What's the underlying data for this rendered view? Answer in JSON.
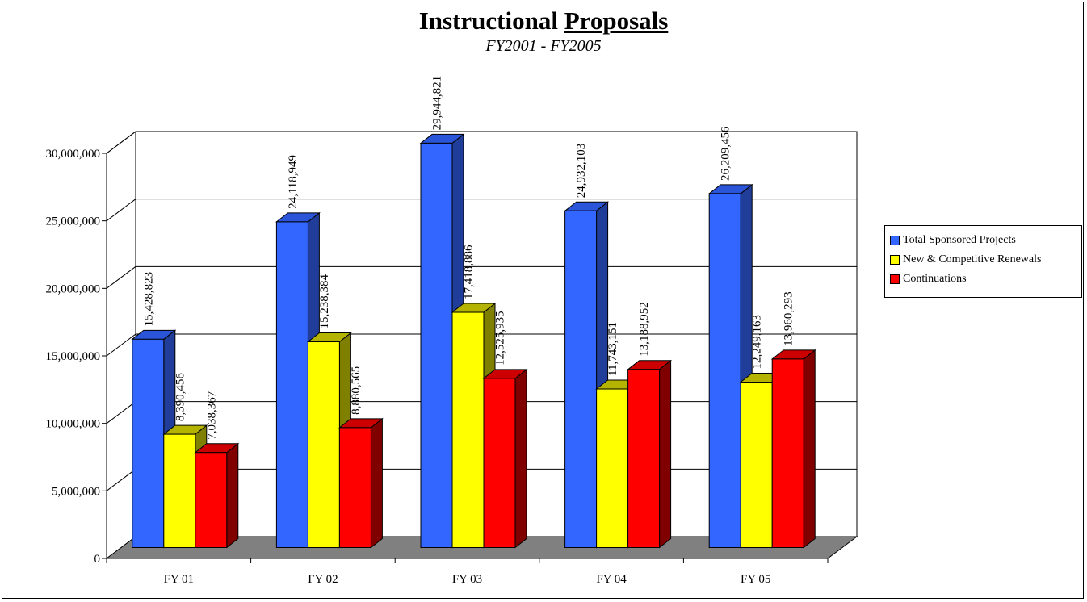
{
  "chart_data": {
    "type": "bar",
    "title_part1": "Instructional",
    "title_part2": "Proposals",
    "subtitle": "FY2001 - FY2005",
    "categories": [
      "FY 01",
      "FY 02",
      "FY 03",
      "FY 04",
      "FY 05"
    ],
    "series": [
      {
        "name": "Total Sponsored Projects",
        "values": [
          15428823,
          24118949,
          29944821,
          24932103,
          26209456
        ],
        "labels": [
          "15,428,823",
          "24,118,949",
          "29,944,821",
          "24,932,103",
          "26,209,456"
        ],
        "color": "#3366FF",
        "side_color": "#1F3D99",
        "top_color": "#2B55D9"
      },
      {
        "name": "New & Competitive Renewals",
        "values": [
          8390456,
          15238384,
          17418886,
          11743151,
          12249163
        ],
        "labels": [
          "8,390,456",
          "15,238,384",
          "17,418,886",
          "11,743,151",
          "12,249,163"
        ],
        "color": "#FFFF00",
        "side_color": "#808000",
        "top_color": "#B3B300"
      },
      {
        "name": "Continuations",
        "values": [
          7038367,
          8880565,
          12525935,
          13188952,
          13960293
        ],
        "labels": [
          "7,038,367",
          "8,880,565",
          "12,525,935",
          "13,188,952",
          "13,960,293"
        ],
        "color": "#FF0000",
        "side_color": "#800000",
        "top_color": "#CC0000"
      }
    ],
    "y_ticks": [
      "0",
      "5,000,000",
      "10,000,000",
      "15,000,000",
      "20,000,000",
      "25,000,000",
      "30,000,000"
    ],
    "ylim": [
      0,
      30000000
    ],
    "grid": true,
    "legend_position": "right",
    "floor_color": "#808080"
  }
}
